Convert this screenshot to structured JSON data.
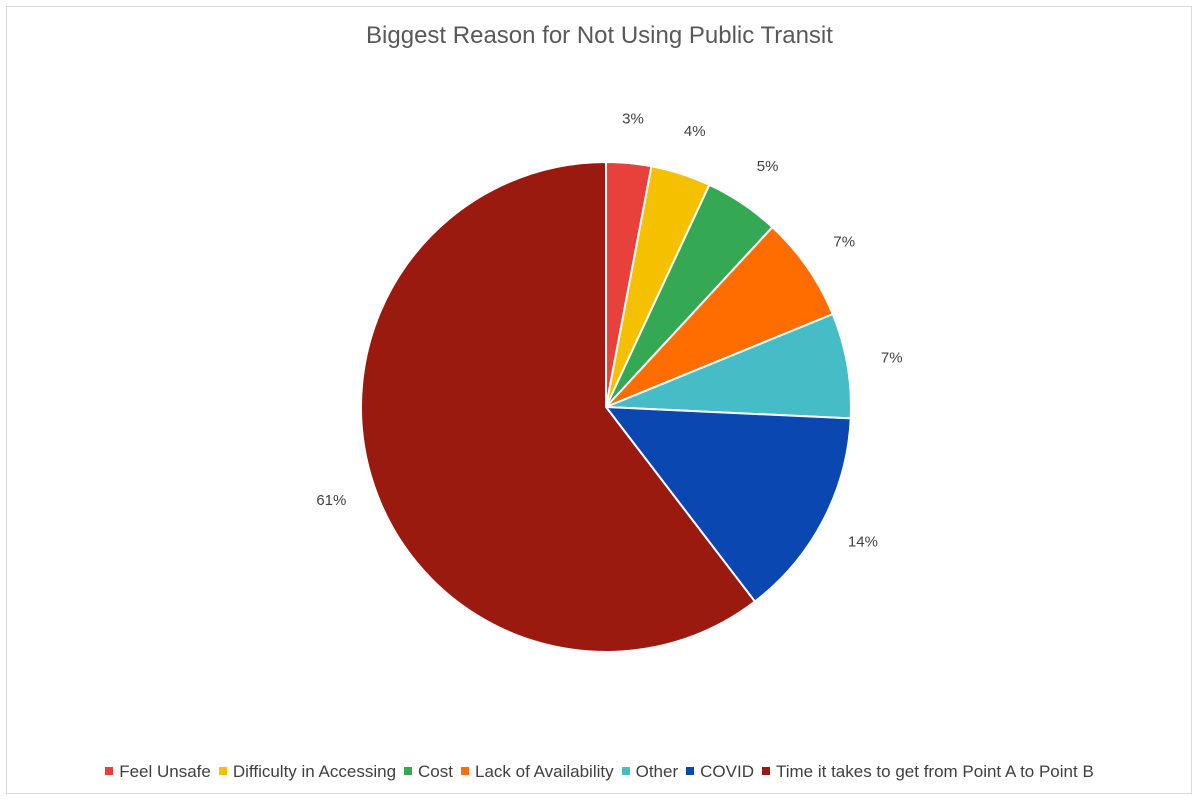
{
  "chart_data": {
    "type": "pie",
    "title": "Biggest Reason for Not Using Public Transit",
    "start_angle_deg": 0,
    "direction": "clockwise",
    "legend_position": "bottom",
    "slices": [
      {
        "label": "Feel Unsafe",
        "value": 3,
        "display": "3%",
        "color": "#E8403A"
      },
      {
        "label": "Difficulty in Accessing",
        "value": 4,
        "display": "4%",
        "color": "#F5C000"
      },
      {
        "label": "Cost",
        "value": 5,
        "display": "5%",
        "color": "#34A853"
      },
      {
        "label": "Lack of Availability",
        "value": 7,
        "display": "7%",
        "color": "#FF6D00"
      },
      {
        "label": "Other",
        "value": 7,
        "display": "7%",
        "color": "#46BDC6"
      },
      {
        "label": "COVID",
        "value": 14,
        "display": "14%",
        "color": "#0B47B0"
      },
      {
        "label": "Time it takes to get from Point A to Point B",
        "value": 61,
        "display": "61%",
        "color": "#9A1A10"
      }
    ]
  }
}
